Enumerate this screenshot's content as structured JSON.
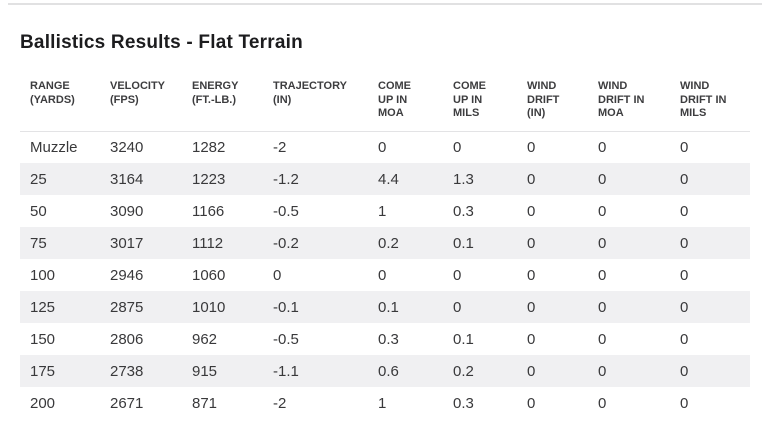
{
  "page": {
    "title": "Ballistics Results - Flat Terrain"
  },
  "colors": {
    "stripe": "#f0f0f2",
    "header_text": "#3d3d3f",
    "body_text": "#39393b",
    "title_text": "#1c1c1e",
    "divider": "#e3e3e5"
  },
  "table": {
    "columns": [
      {
        "label": "RANGE\n(YARDS)",
        "width": 80
      },
      {
        "label": "VELOCITY\n(FPS)",
        "width": 82
      },
      {
        "label": "ENERGY\n(FT.-LB.)",
        "width": 81
      },
      {
        "label": "TRAJECTORY\n(IN)",
        "width": 105
      },
      {
        "label": "COME\nUP IN\nMOA",
        "width": 75
      },
      {
        "label": "COME\nUP IN\nMILS",
        "width": 74
      },
      {
        "label": "WIND\nDRIFT\n(IN)",
        "width": 71
      },
      {
        "label": "WIND\nDRIFT IN\nMOA",
        "width": 82
      },
      {
        "label": "WIND\nDRIFT IN\nMILS",
        "width": 80
      }
    ],
    "rows": [
      [
        "Muzzle",
        "3240",
        "1282",
        "-2",
        "0",
        "0",
        "0",
        "0",
        "0"
      ],
      [
        "25",
        "3164",
        "1223",
        "-1.2",
        "4.4",
        "1.3",
        "0",
        "0",
        "0"
      ],
      [
        "50",
        "3090",
        "1166",
        "-0.5",
        "1",
        "0.3",
        "0",
        "0",
        "0"
      ],
      [
        "75",
        "3017",
        "1112",
        "-0.2",
        "0.2",
        "0.1",
        "0",
        "0",
        "0"
      ],
      [
        "100",
        "2946",
        "1060",
        "0",
        "0",
        "0",
        "0",
        "0",
        "0"
      ],
      [
        "125",
        "2875",
        "1010",
        "-0.1",
        "0.1",
        "0",
        "0",
        "0",
        "0"
      ],
      [
        "150",
        "2806",
        "962",
        "-0.5",
        "0.3",
        "0.1",
        "0",
        "0",
        "0"
      ],
      [
        "175",
        "2738",
        "915",
        "-1.1",
        "0.6",
        "0.2",
        "0",
        "0",
        "0"
      ],
      [
        "200",
        "2671",
        "871",
        "-2",
        "1",
        "0.3",
        "0",
        "0",
        "0"
      ]
    ]
  }
}
